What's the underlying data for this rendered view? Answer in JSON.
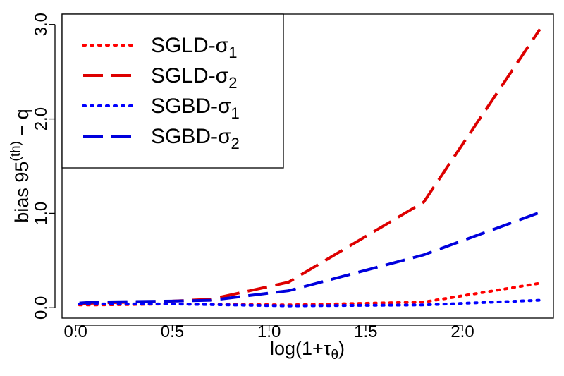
{
  "chart_data": {
    "type": "line",
    "title": "",
    "xlabel": "log(1+τ",
    "xlabel_sub": "θ",
    "xlabel_close": ")",
    "ylabel_prefix": "bias 95",
    "ylabel_sup": "(th)",
    "ylabel_suffix": " − q",
    "xlim": [
      -0.07,
      2.47
    ],
    "ylim": [
      -0.11,
      3.11
    ],
    "x_ticks": [
      0.0,
      0.5,
      1.0,
      1.5,
      2.0
    ],
    "x_tick_labels": [
      "0.0",
      "0.5",
      "1.0",
      "1.5",
      "2.0"
    ],
    "y_ticks": [
      0.0,
      1.0,
      2.0,
      3.0
    ],
    "y_tick_labels": [
      "0.0",
      "1.0",
      "2.0",
      "3.0"
    ],
    "legend_position": "top-left",
    "series": [
      {
        "name": "SGLD-σ1",
        "label_main": "SGLD-σ",
        "label_sub": "1",
        "color": "#ff0000",
        "style": "dotted",
        "x": [
          0.02,
          0.1,
          0.5,
          1.1,
          1.8,
          2.4
        ],
        "values": [
          0.03,
          0.03,
          0.04,
          0.03,
          0.06,
          0.26
        ]
      },
      {
        "name": "SGLD-σ2",
        "label_main": "SGLD-σ",
        "label_sub": "2",
        "color": "#dd0000",
        "style": "dashed",
        "x": [
          0.02,
          0.1,
          0.5,
          0.7,
          1.1,
          1.8,
          2.4
        ],
        "values": [
          0.04,
          0.05,
          0.07,
          0.09,
          0.27,
          1.12,
          2.95
        ]
      },
      {
        "name": "SGBD-σ1",
        "label_main": "SGBD-σ",
        "label_sub": "1",
        "color": "#0000ff",
        "style": "dotted",
        "x": [
          0.02,
          0.1,
          0.5,
          1.1,
          1.8,
          2.4
        ],
        "values": [
          0.04,
          0.04,
          0.04,
          0.02,
          0.03,
          0.08
        ]
      },
      {
        "name": "SGBD-σ2",
        "label_main": "SGBD-σ",
        "label_sub": "2",
        "color": "#0000dd",
        "style": "dashed",
        "x": [
          0.02,
          0.1,
          0.5,
          0.7,
          1.1,
          1.8,
          2.4
        ],
        "values": [
          0.05,
          0.06,
          0.07,
          0.08,
          0.18,
          0.56,
          1.01
        ]
      }
    ]
  }
}
